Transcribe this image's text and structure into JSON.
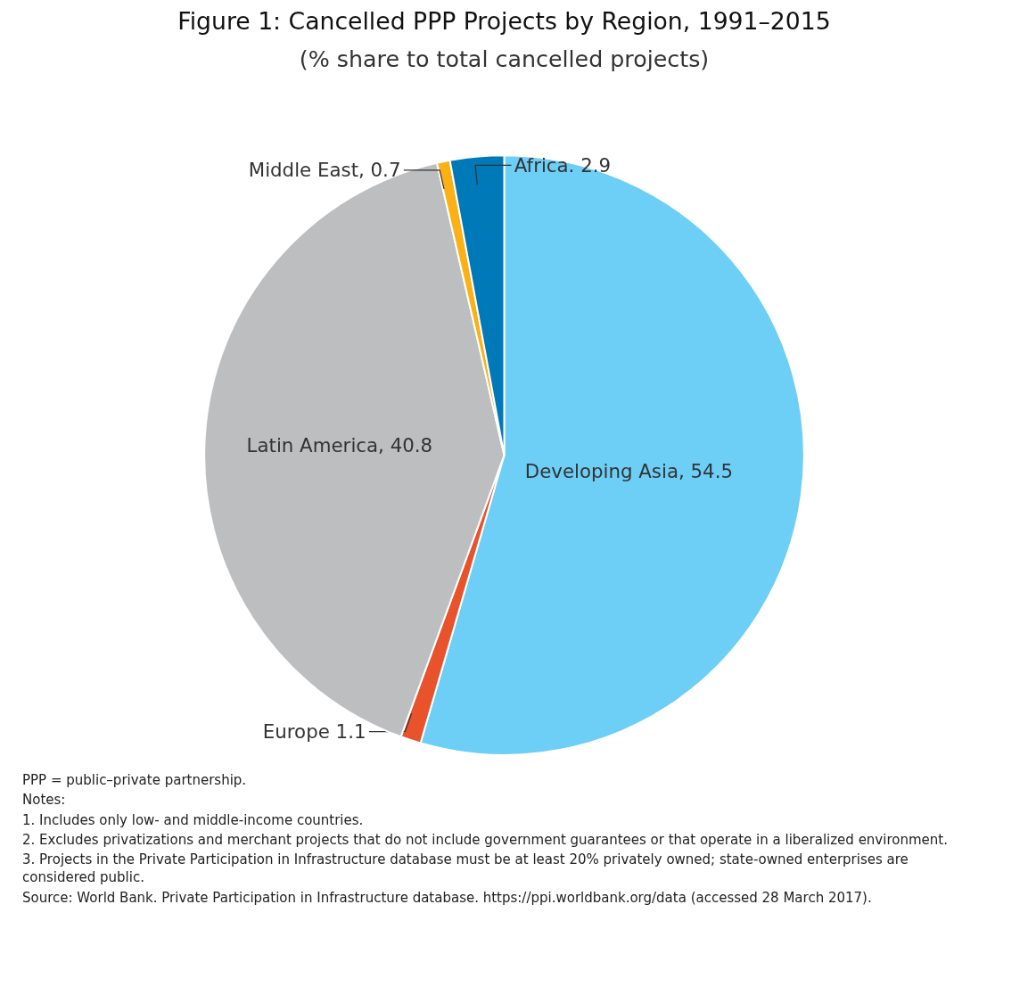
{
  "chart_data": {
    "type": "pie",
    "title": "Figure 1: Cancelled PPP Projects by Region, 1991–2015",
    "subtitle": "(% share to total cancelled projects)",
    "categories": [
      "Developing Asia, 54.5",
      "Europe 1.1",
      "Latin America, 40.8",
      "Middle East, 0.7",
      "Africa. 2.9"
    ],
    "values": [
      54.5,
      1.1,
      40.8,
      0.7,
      2.9
    ],
    "colors": [
      "#6dcff6",
      "#e8532b",
      "#bcbec0",
      "#fbb116",
      "#0079b8"
    ],
    "annotations": [
      "PPP = public–private partnership.",
      "Notes:",
      "1. Includes only low- and middle-income countries.",
      "2. Excludes privatizations and merchant projects that do not include government guarantees or that operate in a liberalized environment.",
      "3. Projects in the Private Participation in Infrastructure database must be at least 20% privately owned; state-owned enterprises are considered public.",
      "Source: World Bank. Private Participation in Infrastructure database. https://ppi.worldbank.org/data (accessed 28 March 2017)."
    ]
  }
}
